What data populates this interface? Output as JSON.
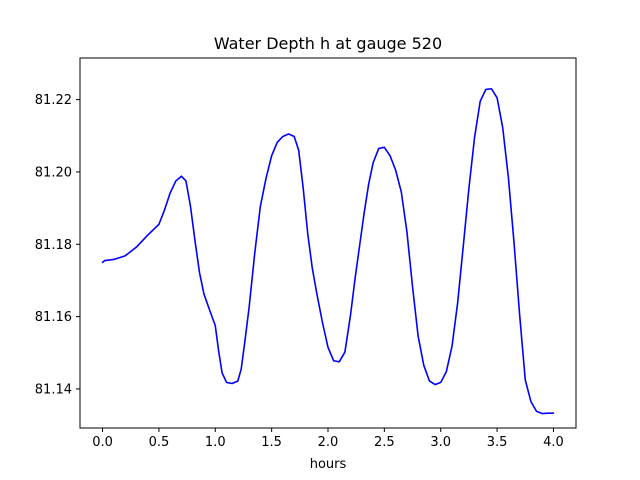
{
  "chart_data": {
    "type": "line",
    "title": "Water Depth h at gauge 520",
    "xlabel": "hours",
    "ylabel": "",
    "xlim": [
      -0.2,
      4.2
    ],
    "ylim": [
      81.1292,
      81.2315
    ],
    "xticks": [
      0.0,
      0.5,
      1.0,
      1.5,
      2.0,
      2.5,
      3.0,
      3.5,
      4.0
    ],
    "xtick_labels": [
      "0.0",
      "0.5",
      "1.0",
      "1.5",
      "2.0",
      "2.5",
      "3.0",
      "3.5",
      "4.0"
    ],
    "yticks": [
      81.14,
      81.16,
      81.18,
      81.2,
      81.22
    ],
    "ytick_labels": [
      "81.14",
      "81.16",
      "81.18",
      "81.20",
      "81.22"
    ],
    "grid": false,
    "series": [
      {
        "color": "#0000ff",
        "x": [
          0.0,
          0.02,
          0.1,
          0.2,
          0.3,
          0.4,
          0.5,
          0.55,
          0.6,
          0.65,
          0.7,
          0.74,
          0.78,
          0.82,
          0.86,
          0.9,
          0.95,
          1.0,
          1.03,
          1.06,
          1.1,
          1.15,
          1.2,
          1.23,
          1.26,
          1.3,
          1.35,
          1.4,
          1.45,
          1.5,
          1.55,
          1.6,
          1.65,
          1.7,
          1.74,
          1.78,
          1.82,
          1.86,
          1.9,
          1.95,
          2.0,
          2.05,
          2.1,
          2.15,
          2.2,
          2.24,
          2.28,
          2.32,
          2.36,
          2.4,
          2.45,
          2.5,
          2.55,
          2.6,
          2.65,
          2.7,
          2.75,
          2.8,
          2.85,
          2.9,
          2.95,
          3.0,
          3.05,
          3.1,
          3.15,
          3.2,
          3.25,
          3.3,
          3.35,
          3.4,
          3.45,
          3.5,
          3.55,
          3.6,
          3.65,
          3.7,
          3.75,
          3.8,
          3.85,
          3.9,
          3.95,
          4.0
        ],
        "y": [
          81.175,
          81.1755,
          81.1758,
          81.1768,
          81.1792,
          81.1825,
          81.1855,
          81.1895,
          81.1942,
          81.1975,
          81.1988,
          81.1975,
          81.1905,
          81.181,
          81.1722,
          81.1662,
          81.1618,
          81.1575,
          81.1505,
          81.1445,
          81.1418,
          81.1415,
          81.1422,
          81.1455,
          81.1525,
          81.1625,
          81.1775,
          81.1905,
          81.1982,
          81.2045,
          81.2082,
          81.2098,
          81.2105,
          81.2098,
          81.206,
          81.1955,
          81.183,
          81.1735,
          81.1665,
          81.1585,
          81.1515,
          81.1478,
          81.1475,
          81.1502,
          81.1605,
          81.1705,
          81.1795,
          81.1885,
          81.1965,
          81.2025,
          81.2065,
          81.2068,
          81.2045,
          81.2005,
          81.1945,
          81.1835,
          81.1682,
          81.1545,
          81.1465,
          81.1422,
          81.1412,
          81.1418,
          81.1448,
          81.1518,
          81.1638,
          81.1795,
          81.1955,
          81.2095,
          81.2195,
          81.2228,
          81.223,
          81.2205,
          81.2122,
          81.1985,
          81.1805,
          81.1605,
          81.1425,
          81.1365,
          81.1338,
          81.1332,
          81.1333,
          81.1333
        ]
      }
    ]
  }
}
